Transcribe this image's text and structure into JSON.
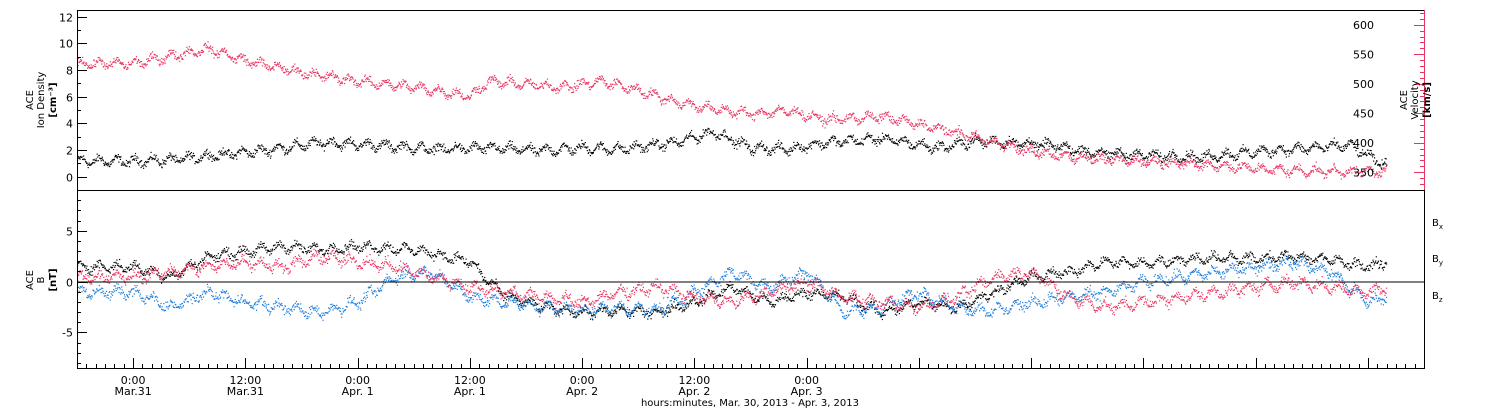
{
  "chart_data": [
    {
      "type": "scatter",
      "panel": "plasma",
      "ylabel_left": [
        "ACE",
        "Ion Density",
        "[cm⁻³]"
      ],
      "ylabel_right": [
        "ACE",
        "Velocity",
        "[km/s]"
      ],
      "ylim_left": [
        -1,
        12.5
      ],
      "ylim_right": [
        320,
        625
      ],
      "yticks_left": [
        "0",
        "2",
        "4",
        "6",
        "8",
        "10",
        "12"
      ],
      "yticks_right": [
        "350",
        "400",
        "450",
        "500",
        "550",
        "600"
      ],
      "series": [
        {
          "name": "",
          "axis": "left",
          "color": "#000000",
          "knots_t": [
            0,
            4,
            8,
            14,
            20,
            26,
            32,
            38,
            44,
            48,
            52,
            58,
            62,
            66,
            70,
            74,
            80,
            86,
            90,
            94,
            98,
            102,
            106,
            110,
            114,
            120,
            126,
            130,
            134
          ],
          "knots_v": [
            1.2,
            1.3,
            1.6,
            2.0,
            2.6,
            2.4,
            2.1,
            2.2,
            2.0,
            2.2,
            2.1,
            2.6,
            3.4,
            2.2,
            2.1,
            2.6,
            2.9,
            2.2,
            2.7,
            2.6,
            2.4,
            1.9,
            1.7,
            1.6,
            1.5,
            1.9,
            2.2,
            2.4,
            0.8
          ],
          "noise": 0.45
        },
        {
          "name": "",
          "axis": "right",
          "color": "#e8345f",
          "knots_t": [
            0,
            4,
            8,
            12,
            18,
            24,
            30,
            36,
            38,
            42,
            46,
            50,
            54,
            58,
            62,
            66,
            70,
            74,
            80,
            84,
            88,
            92,
            96,
            100,
            104,
            110,
            116,
            122,
            128,
            134
          ],
          "knots_v": [
            535,
            548,
            560,
            540,
            520,
            505,
            495,
            480,
            505,
            500,
            495,
            505,
            490,
            470,
            458,
            450,
            455,
            440,
            445,
            432,
            418,
            402,
            385,
            378,
            372,
            368,
            362,
            355,
            352,
            352
          ],
          "noise": 10
        }
      ]
    },
    {
      "type": "scatter",
      "panel": "magnetic",
      "ylabel_left": [
        "ACE",
        "B",
        "[nT]"
      ],
      "ylim": [
        -8.5,
        9
      ],
      "yticks": [
        "-5",
        "0",
        "5"
      ],
      "legend": [
        {
          "label": "B",
          "sub": "x",
          "color": "#000000"
        },
        {
          "label": "B",
          "sub": "y",
          "color": "#1f7fdc"
        },
        {
          "label": "B",
          "sub": "z",
          "color": "#e8345f"
        }
      ],
      "series": [
        {
          "name": "Bx",
          "color": "#000000",
          "knots_t": [
            0,
            4,
            8,
            12,
            16,
            20,
            24,
            30,
            36,
            38,
            40,
            44,
            48,
            52,
            56,
            60,
            64,
            68,
            72,
            76,
            80,
            84,
            88,
            92,
            96,
            100,
            104,
            108,
            112,
            116,
            120,
            124,
            128,
            132,
            134
          ],
          "knots_v": [
            1.5,
            0.5,
            2.5,
            3.0,
            3.5,
            3.2,
            3.5,
            3.2,
            2.0,
            0.0,
            -1.5,
            -2.5,
            -3.0,
            -2.8,
            -3.0,
            -2.0,
            -0.5,
            -2.0,
            -1.0,
            -1.5,
            -3.0,
            -2.0,
            -2.5,
            -1.0,
            0.5,
            1.0,
            2.0,
            1.8,
            2.2,
            2.4,
            2.3,
            2.5,
            2.2,
            1.5,
            2.0
          ],
          "noise": 0.6
        },
        {
          "name": "By",
          "color": "#1f7fdc",
          "knots_t": [
            0,
            4,
            8,
            12,
            16,
            20,
            24,
            28,
            32,
            36,
            40,
            44,
            48,
            52,
            56,
            60,
            64,
            68,
            72,
            76,
            80,
            84,
            88,
            92,
            96,
            100,
            104,
            108,
            112,
            116,
            120,
            124,
            128,
            132,
            134
          ],
          "knots_v": [
            -1.0,
            -2.5,
            -1.0,
            -2.0,
            -2.5,
            -3.0,
            -2.0,
            0.5,
            1.0,
            -1.5,
            -2.0,
            -2.5,
            -2.8,
            -2.5,
            -2.8,
            -1.0,
            1.0,
            -0.5,
            1.0,
            -3.0,
            -2.5,
            -1.0,
            -2.5,
            -2.8,
            -2.0,
            -1.5,
            -1.0,
            0.0,
            0.5,
            1.0,
            1.5,
            2.0,
            1.0,
            -2.0,
            -1.5
          ],
          "noise": 0.7
        },
        {
          "name": "Bz",
          "color": "#e8345f",
          "knots_t": [
            0,
            4,
            8,
            12,
            16,
            20,
            24,
            28,
            32,
            36,
            40,
            44,
            48,
            52,
            56,
            60,
            64,
            68,
            72,
            76,
            80,
            84,
            88,
            92,
            96,
            100,
            104,
            108,
            112,
            116,
            120,
            124,
            128,
            132,
            134
          ],
          "knots_v": [
            0.5,
            1.0,
            1.5,
            2.0,
            1.5,
            2.5,
            2.0,
            1.5,
            0.5,
            -0.5,
            -1.0,
            -1.5,
            -2.0,
            -1.0,
            -0.5,
            -1.5,
            -2.0,
            -1.0,
            0.0,
            -1.5,
            -2.0,
            -2.5,
            -1.5,
            0.5,
            1.0,
            -1.5,
            -2.5,
            -2.0,
            -1.5,
            -1.0,
            -0.5,
            0.0,
            -0.5,
            -1.0,
            -0.5
          ],
          "noise": 0.7
        }
      ]
    }
  ],
  "x_axis": {
    "xlim_hours": [
      -6,
      138
    ],
    "data_end_hours": 134,
    "ticks": [
      {
        "hour": 0,
        "time": "0:00",
        "day": "Mar.31"
      },
      {
        "hour": 12,
        "time": "12:00",
        "day": "Mar.31"
      },
      {
        "hour": 24,
        "time": "0:00",
        "day": "Apr. 1"
      },
      {
        "hour": 36,
        "time": "12:00",
        "day": "Apr. 1"
      },
      {
        "hour": 48,
        "time": "0:00",
        "day": "Apr. 2"
      },
      {
        "hour": 60,
        "time": "12:00",
        "day": "Apr. 2"
      },
      {
        "hour": 72,
        "time": "0:00",
        "day": "Apr. 3"
      }
    ],
    "xlabel": "hours:minutes, Mar. 30, 2013 - Apr.  3, 2013"
  }
}
